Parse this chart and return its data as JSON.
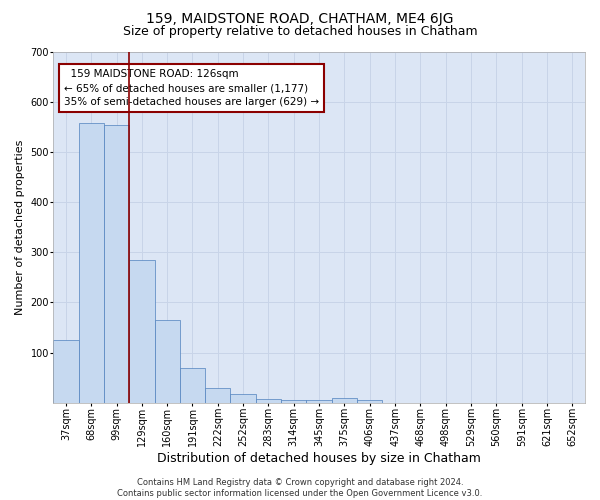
{
  "title": "159, MAIDSTONE ROAD, CHATHAM, ME4 6JG",
  "subtitle": "Size of property relative to detached houses in Chatham",
  "xlabel": "Distribution of detached houses by size in Chatham",
  "ylabel": "Number of detached properties",
  "footer_line1": "Contains HM Land Registry data © Crown copyright and database right 2024.",
  "footer_line2": "Contains public sector information licensed under the Open Government Licence v3.0.",
  "categories": [
    "37sqm",
    "68sqm",
    "99sqm",
    "129sqm",
    "160sqm",
    "191sqm",
    "222sqm",
    "252sqm",
    "283sqm",
    "314sqm",
    "345sqm",
    "375sqm",
    "406sqm",
    "437sqm",
    "468sqm",
    "498sqm",
    "529sqm",
    "560sqm",
    "591sqm",
    "621sqm",
    "652sqm"
  ],
  "values": [
    126,
    557,
    554,
    284,
    164,
    70,
    30,
    18,
    8,
    6,
    6,
    10,
    5,
    0,
    0,
    0,
    0,
    0,
    0,
    0,
    0
  ],
  "bar_color": "#c6d9f0",
  "bar_edge_color": "#4f81bd",
  "vline_x": 2.5,
  "vline_color": "#8B0000",
  "annotation_line1": "  159 MAIDSTONE ROAD: 126sqm",
  "annotation_line2": "← 65% of detached houses are smaller (1,177)",
  "annotation_line3": "35% of semi-detached houses are larger (629) →",
  "annotation_box_color": "white",
  "annotation_box_edge": "#8B0000",
  "ylim": [
    0,
    700
  ],
  "yticks": [
    100,
    200,
    300,
    400,
    500,
    600,
    700
  ],
  "grid_color": "#c8d4e8",
  "bg_color": "#dce6f5",
  "title_fontsize": 10,
  "subtitle_fontsize": 9,
  "xlabel_fontsize": 9,
  "ylabel_fontsize": 8,
  "tick_fontsize": 7,
  "footer_fontsize": 6
}
